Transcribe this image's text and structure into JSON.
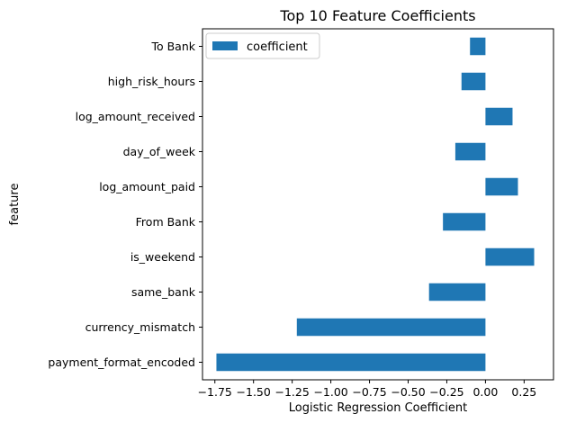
{
  "chart_data": {
    "type": "bar",
    "orientation": "horizontal",
    "title": "Top 10 Feature Coefficients",
    "xlabel": "Logistic Regression Coefficient",
    "ylabel": "feature",
    "categories": [
      "To Bank",
      "high_risk_hours",
      "log_amount_received",
      "day_of_week",
      "log_amount_paid",
      "From Bank",
      "is_weekend",
      "same_bank",
      "currency_mismatch",
      "payment_format_encoded"
    ],
    "series": [
      {
        "name": "coefficient",
        "values": [
          -0.1,
          -0.155,
          0.175,
          -0.195,
          0.21,
          -0.275,
          0.315,
          -0.365,
          -1.22,
          -1.74
        ]
      }
    ],
    "xlim": [
      -1.83,
      0.44
    ],
    "xticks": [
      -1.75,
      -1.5,
      -1.25,
      -1.0,
      -0.75,
      -0.5,
      -0.25,
      0.0,
      0.25
    ],
    "xtick_labels": [
      "−1.75",
      "−1.50",
      "−1.25",
      "−1.00",
      "−0.75",
      "−0.50",
      "−0.25",
      "0.00",
      "0.25"
    ],
    "legend_position": "top-left",
    "grid": false,
    "colors": {
      "bar": "#1f77b4"
    }
  }
}
